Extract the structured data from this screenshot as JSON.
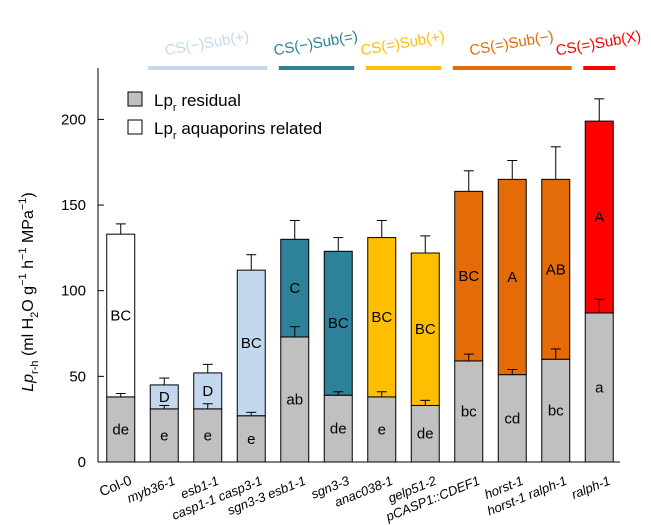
{
  "chart_data": {
    "type": "bar",
    "stacked": true,
    "ylabel": "Lp_r-h (ml H2O g^-1 h^-1 MPa^-1)",
    "ylim": [
      0,
      230
    ],
    "yticks": [
      0,
      50,
      100,
      150,
      200
    ],
    "categories": [
      "Col-0",
      "myb36-1",
      "esb1-1",
      "casp1-1 casp3-1",
      "sgn3-3 esb1-1",
      "sgn3-3",
      "anac038-1",
      "gelp51-2",
      "pCASP1::CDEF1",
      "horst-1",
      "horst-1 ralph-1",
      "ralph-1"
    ],
    "upright_categories": [
      "Col-0"
    ],
    "legend": [
      {
        "label": "aquaporins related",
        "color": "#ffffff"
      },
      {
        "label": "residual",
        "color": "#c0c0c0"
      }
    ],
    "series": [
      {
        "name": "Lp_r residual",
        "values": [
          38,
          31,
          31,
          27,
          73,
          39,
          38,
          33,
          59,
          51,
          60,
          87
        ],
        "errors": [
          2,
          2,
          3,
          2,
          6,
          2,
          3,
          3,
          4,
          3,
          6,
          8
        ],
        "labels": [
          "de",
          "e",
          "e",
          "e",
          "ab",
          "de",
          "e",
          "de",
          "bc",
          "cd",
          "bc",
          "a"
        ]
      },
      {
        "name": "Lp_r aquaporins related",
        "values": [
          95,
          14,
          21,
          85,
          57,
          84,
          93,
          89,
          99,
          114,
          105,
          112
        ],
        "errors": [
          6,
          4,
          5,
          9,
          11,
          8,
          10,
          10,
          12,
          11,
          19,
          13
        ],
        "labels": [
          "BC",
          "D",
          "D",
          "BC",
          "C",
          "BC",
          "BC",
          "BC",
          "BC",
          "A",
          "AB",
          "A"
        ],
        "colors": [
          "#ffffff",
          "#c3d8ee",
          "#c3d8ee",
          "#c3d8ee",
          "#2d8199",
          "#2d8199",
          "#ffbf00",
          "#ffbf00",
          "#e36c09",
          "#e36c09",
          "#e36c09",
          "#ff0000"
        ]
      }
    ],
    "groups": [
      {
        "label": "CS(−)Sub(+)",
        "color": "#c3d8ee",
        "from": 1,
        "to": 3
      },
      {
        "label": "CS(−)Sub(=)",
        "color": "#2d8199",
        "from": 4,
        "to": 5
      },
      {
        "label": "CS(=)Sub(+)",
        "color": "#ffbf00",
        "from": 6,
        "to": 7
      },
      {
        "label": "CS(=)Sub(−)",
        "color": "#e36c09",
        "from": 8,
        "to": 10
      },
      {
        "label": "CS(=)Sub(X)",
        "color": "#ff0000",
        "from": 11,
        "to": 11
      }
    ]
  }
}
